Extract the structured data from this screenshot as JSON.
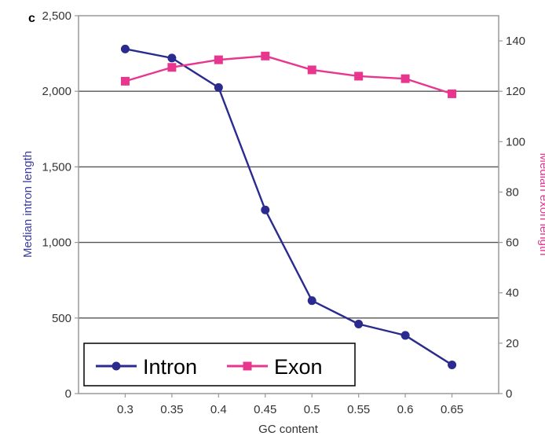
{
  "panel_label": "c",
  "chart_data": {
    "type": "line",
    "x": [
      0.3,
      0.35,
      0.4,
      0.45,
      0.5,
      0.55,
      0.6,
      0.65
    ],
    "x_tick_labels": [
      "0.3",
      "0.35",
      "0.4",
      "0.45",
      "0.5",
      "0.55",
      "0.6",
      "0.65"
    ],
    "xlabel": "GC content",
    "ylabel_left": "Median intron length",
    "ylabel_right": "Median exon length",
    "ylim_left": [
      0,
      2500
    ],
    "ylim_right": [
      0,
      150
    ],
    "y_left_ticks": [
      0,
      500,
      1000,
      1500,
      2000,
      2500
    ],
    "y_left_tick_labels": [
      "0",
      "500",
      "1,000",
      "1,500",
      "2,000",
      "2,500"
    ],
    "y_right_ticks": [
      0,
      20,
      40,
      60,
      80,
      100,
      120,
      140
    ],
    "y_right_tick_labels": [
      "0",
      "20",
      "40",
      "60",
      "80",
      "100",
      "120",
      "140"
    ],
    "gridlines": [
      500,
      1000,
      1500,
      2000
    ],
    "legend_position": "bottom-left",
    "series": [
      {
        "name": "Intron",
        "axis": "left",
        "marker": "circle",
        "color": "#2b2b8f",
        "values": [
          2280,
          2220,
          2025,
          1215,
          615,
          460,
          385,
          190
        ]
      },
      {
        "name": "Exon",
        "axis": "right",
        "marker": "square",
        "color": "#e8368f",
        "values": [
          124,
          129.5,
          132.5,
          134,
          128.5,
          126,
          125,
          119
        ]
      }
    ]
  }
}
